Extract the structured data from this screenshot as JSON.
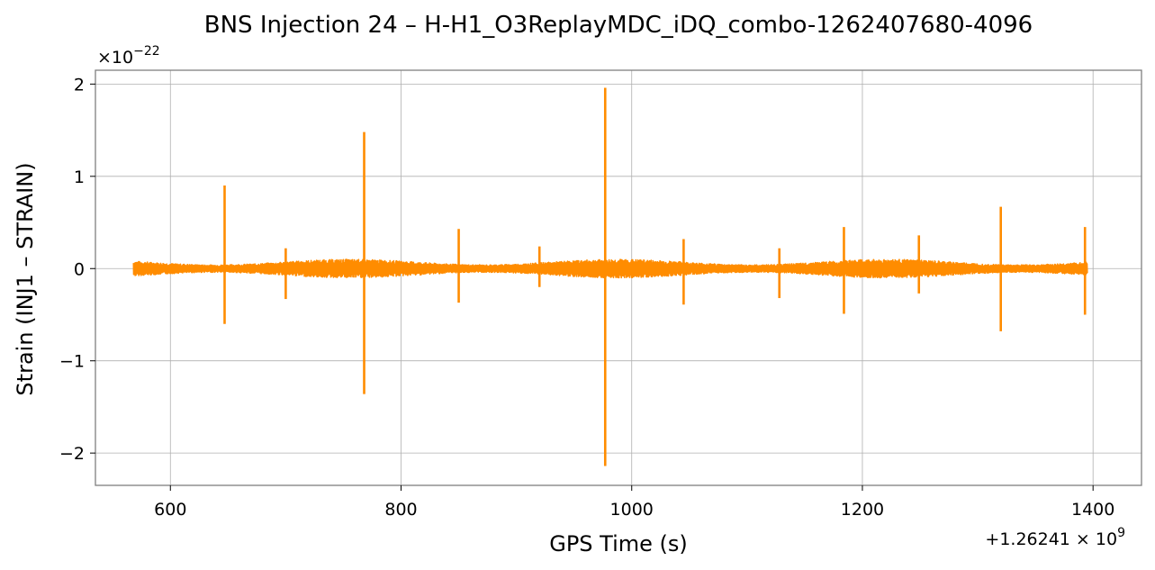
{
  "chart_data": {
    "type": "line",
    "title": "BNS Injection 24 – H-H1_O3ReplayMDC_iDQ_combo-1262407680-4096",
    "xlabel": "GPS Time (s)",
    "ylabel": "Strain (INJ1 – STRAIN)",
    "x_offset_label": "+1.26241 × 10",
    "x_offset_exponent": "9",
    "y_scale_label": "×10",
    "y_scale_exponent": "−22",
    "xlim": [
      535,
      1442
    ],
    "ylim": [
      -2.35,
      2.15
    ],
    "x_ticks": [
      600,
      800,
      1000,
      1200,
      1400
    ],
    "x_tick_labels": [
      "600",
      "800",
      "1000",
      "1200",
      "1400"
    ],
    "y_ticks": [
      -2,
      -1,
      0,
      1,
      2
    ],
    "y_tick_labels": [
      "−2",
      "−1",
      "0",
      "1",
      "2"
    ],
    "grid": true,
    "series": [
      {
        "color": "#ff8c00",
        "x_start": 568,
        "x_end": 1395,
        "noise_envelope": 0.1,
        "spikes": [
          {
            "x": 647,
            "max": 0.9,
            "min": -0.6
          },
          {
            "x": 700,
            "max": 0.22,
            "min": -0.33
          },
          {
            "x": 768,
            "max": 1.48,
            "min": -1.36
          },
          {
            "x": 850,
            "max": 0.43,
            "min": -0.37
          },
          {
            "x": 920,
            "max": 0.24,
            "min": -0.2
          },
          {
            "x": 977,
            "max": 1.96,
            "min": -2.14
          },
          {
            "x": 1045,
            "max": 0.32,
            "min": -0.39
          },
          {
            "x": 1128,
            "max": 0.22,
            "min": -0.32
          },
          {
            "x": 1184,
            "max": 0.45,
            "min": -0.49
          },
          {
            "x": 1249,
            "max": 0.36,
            "min": -0.27
          },
          {
            "x": 1320,
            "max": 0.67,
            "min": -0.68
          },
          {
            "x": 1393,
            "max": 0.45,
            "min": -0.5
          }
        ]
      }
    ]
  }
}
